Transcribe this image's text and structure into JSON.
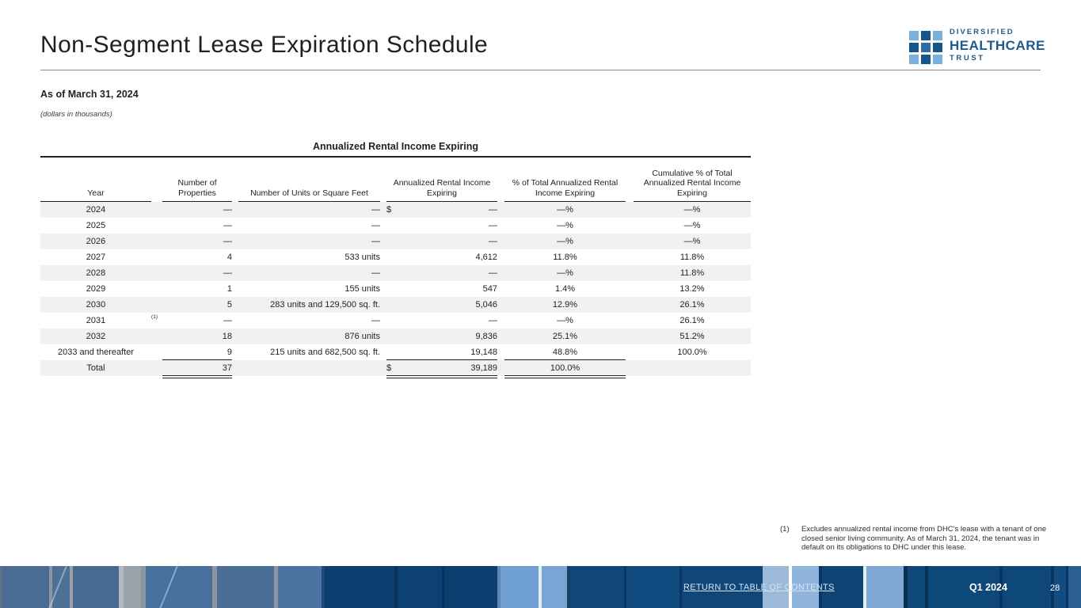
{
  "header": {
    "title": "Non-Segment Lease Expiration Schedule",
    "logo": {
      "line1": "DIVERSIFIED",
      "line2": "HEALTHCARE",
      "line3": "TRUST",
      "grid_pattern": [
        "light",
        "dark",
        "light",
        "dark",
        "mid",
        "dark",
        "light",
        "dark",
        "light"
      ]
    }
  },
  "meta": {
    "as_of": "As of March 31, 2024",
    "units_note": "(dollars in thousands)"
  },
  "table": {
    "title": "Annualized Rental Income Expiring",
    "columns": [
      "Year",
      "Number of Properties",
      "Number of Units or Square Feet",
      "Annualized Rental Income Expiring",
      "% of Total Annualized Rental Income Expiring",
      "Cumulative % of Total Annualized Rental Income Expiring"
    ],
    "rows": [
      {
        "year": "2024",
        "ref": "",
        "properties": "—",
        "units": "—",
        "currency": "$",
        "income": "—",
        "pct": "—%",
        "cum": "—%",
        "underline": false
      },
      {
        "year": "2025",
        "ref": "",
        "properties": "—",
        "units": "—",
        "currency": "",
        "income": "—",
        "pct": "—%",
        "cum": "—%",
        "underline": false
      },
      {
        "year": "2026",
        "ref": "",
        "properties": "—",
        "units": "—",
        "currency": "",
        "income": "—",
        "pct": "—%",
        "cum": "—%",
        "underline": false
      },
      {
        "year": "2027",
        "ref": "",
        "properties": "4",
        "units": "533 units",
        "currency": "",
        "income": "4,612",
        "pct": "11.8%",
        "cum": "11.8%",
        "underline": false
      },
      {
        "year": "2028",
        "ref": "",
        "properties": "—",
        "units": "—",
        "currency": "",
        "income": "—",
        "pct": "—%",
        "cum": "11.8%",
        "underline": false
      },
      {
        "year": "2029",
        "ref": "",
        "properties": "1",
        "units": "155 units",
        "currency": "",
        "income": "547",
        "pct": "1.4%",
        "cum": "13.2%",
        "underline": false
      },
      {
        "year": "2030",
        "ref": "",
        "properties": "5",
        "units": "283 units and 129,500 sq. ft.",
        "currency": "",
        "income": "5,046",
        "pct": "12.9%",
        "cum": "26.1%",
        "underline": false
      },
      {
        "year": "2031",
        "ref": "(1)",
        "properties": "—",
        "units": "—",
        "currency": "",
        "income": "—",
        "pct": "—%",
        "cum": "26.1%",
        "underline": false
      },
      {
        "year": "2032",
        "ref": "",
        "properties": "18",
        "units": "876 units",
        "currency": "",
        "income": "9,836",
        "pct": "25.1%",
        "cum": "51.2%",
        "underline": false
      },
      {
        "year": "2033 and thereafter",
        "ref": "",
        "properties": "9",
        "units": "215 units and 682,500 sq. ft.",
        "currency": "",
        "income": "19,148",
        "pct": "48.8%",
        "cum": "100.0%",
        "underline": true
      }
    ],
    "total": {
      "label": "Total",
      "properties": "37",
      "units": "",
      "currency": "$",
      "income": "39,189",
      "pct": "100.0%",
      "cum": ""
    }
  },
  "footnote": {
    "marker": "(1)",
    "text": "Excludes annualized rental income from DHC's lease with a tenant of one closed senior living community. As of March 31, 2024, the tenant was in default on its obligations to DHC under this lease."
  },
  "footer": {
    "link": "RETURN TO TABLE OF CONTENTS",
    "period": "Q1 2024",
    "page": "28"
  },
  "colors": {
    "logo_light": "#7ab0d9",
    "logo_dark": "#15568d",
    "logo_mid": "#2e6ca6",
    "logo_text_navy": "#1d5a8e",
    "row_stripe": "#f0f1f2",
    "footer_navy": "#0e4779",
    "footer_slate": "#4a6b92",
    "footer_light_panel": "#7fa8d4",
    "link_text": "#d9e4f0"
  }
}
